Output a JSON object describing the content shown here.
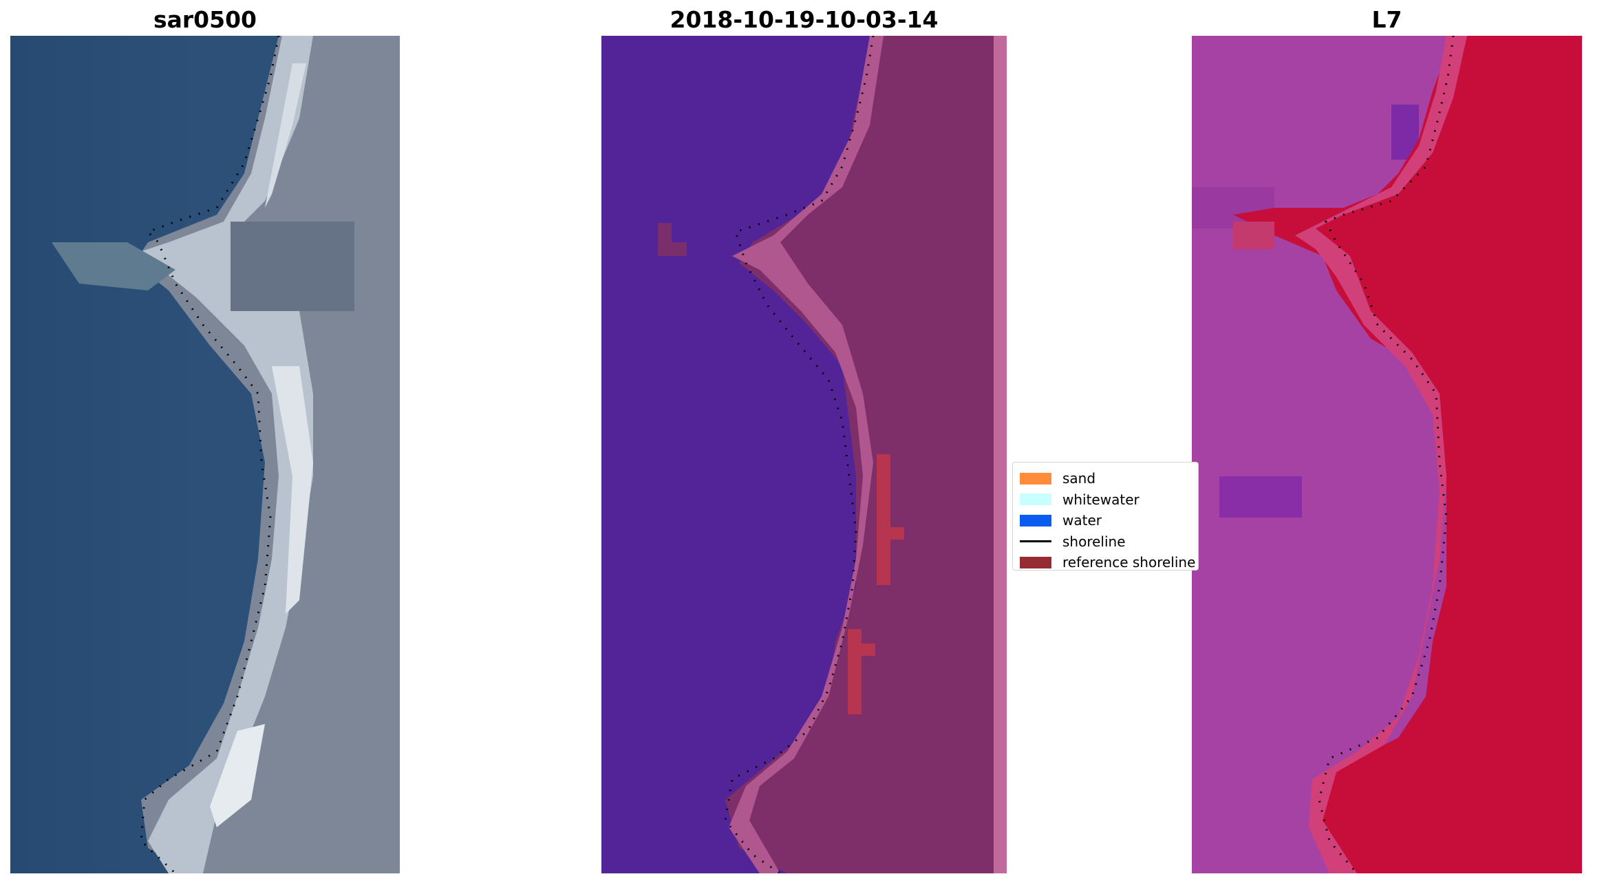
{
  "panels": [
    {
      "title": "sar0500"
    },
    {
      "title": "2018-10-19-10-03-14"
    },
    {
      "title": "L7"
    }
  ],
  "legend": {
    "items": [
      {
        "label": "sand",
        "color": "#ff8c3a",
        "kind": "patch"
      },
      {
        "label": "whitewater",
        "color": "#c8ffff",
        "kind": "patch"
      },
      {
        "label": "water",
        "color": "#0a5cf0",
        "kind": "patch"
      },
      {
        "label": "shoreline",
        "color": "#000000",
        "kind": "line"
      },
      {
        "label": "reference shoreline",
        "color": "#962c33",
        "kind": "patch"
      }
    ]
  },
  "colors": {
    "rgb_water": "#2a4d76",
    "rgb_beach": "#c6d0da",
    "rgb_land": "#7e8898",
    "class_water": "#532497",
    "class_land": "#7e2f6a",
    "class_reference": "#b8354f",
    "index_water": "#a642a4",
    "index_land": "#c70e3a"
  }
}
